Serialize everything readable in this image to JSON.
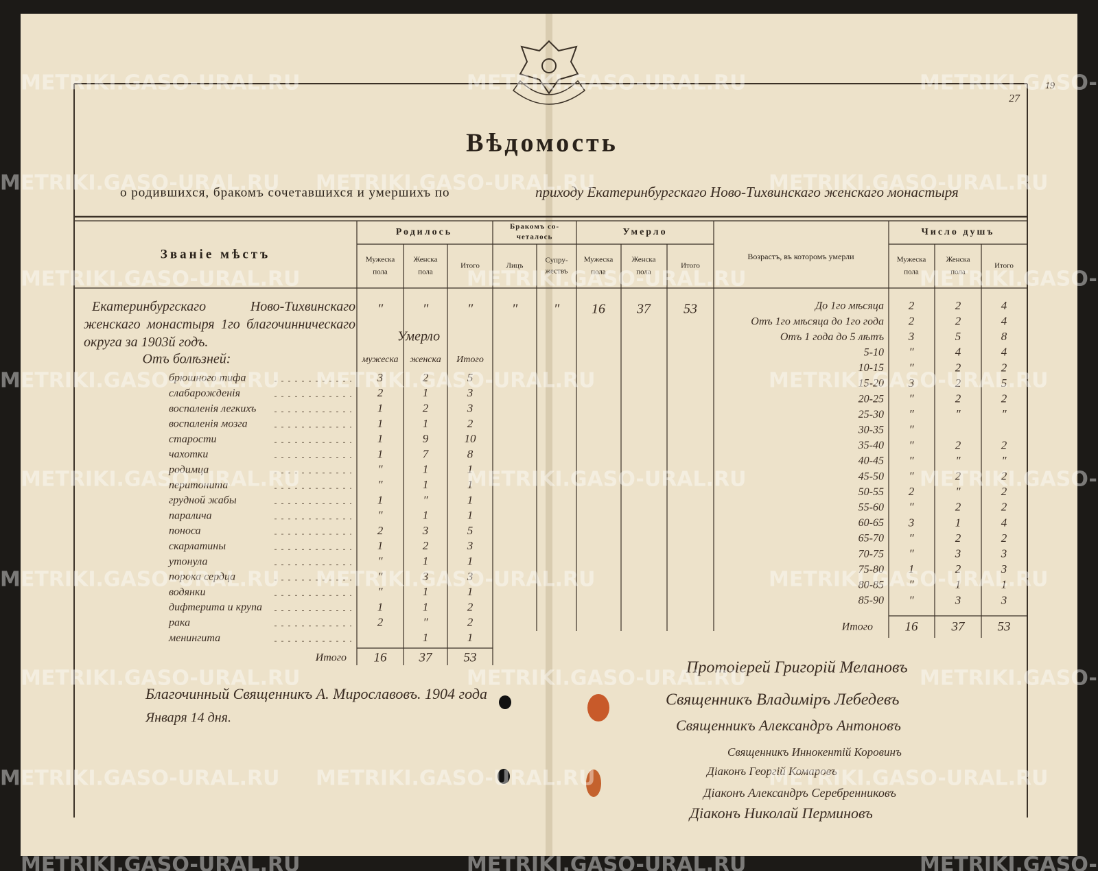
{
  "header": {
    "title": "Вѣдомость",
    "subtitle": "о родившихся, бракомъ сочетавшихся и умершихъ по",
    "subtitle_hand": "приходу Екатеринбургскаго Ново-Тихвинскаго женскаго монастыря",
    "folio": [
      "27",
      "19"
    ]
  },
  "watermark": "METRIKI.GASO-URAL.RU",
  "table": {
    "headers": {
      "place": "Званіе мѣстъ",
      "born": {
        "title": "Родилось",
        "sub": [
          [
            "Мужеска",
            "пола"
          ],
          [
            "Женска",
            "пола"
          ],
          [
            "Итого"
          ]
        ]
      },
      "married": {
        "title": [
          "Бракомъ со-",
          "четалось"
        ],
        "sub": [
          [
            "Лицъ"
          ],
          [
            "Супру-",
            "жествъ"
          ]
        ]
      },
      "died": {
        "title": "Умерло",
        "sub": [
          [
            "Мужеска",
            "пола"
          ],
          [
            "Женска",
            "пола"
          ],
          [
            "Итого"
          ]
        ]
      },
      "age": "Возрастъ, въ которомъ умерли",
      "souls": {
        "title": "Число душъ",
        "sub": [
          [
            "Мужеска",
            "пола"
          ],
          [
            "Женска",
            "пола"
          ],
          [
            "Итого"
          ]
        ]
      }
    },
    "place": "Екатеринбургскаго Ново-Тихвинскаго женскаго монастыря 1го благочинническаго округа за 1903й годъ.",
    "main_row": [
      "″",
      "″",
      "″",
      "″",
      "″",
      16,
      37,
      53
    ],
    "causes_header": {
      "title": "Умерло",
      "sub": [
        "мужеска",
        "женска",
        "Итого"
      ],
      "from": "Отъ болѣзней:"
    },
    "causes": [
      [
        "брюшного тифа",
        3,
        2,
        5
      ],
      [
        "слабарожденія",
        2,
        1,
        3
      ],
      [
        "воспаленія легкихъ",
        1,
        2,
        3
      ],
      [
        "воспаленія мозга",
        1,
        1,
        2
      ],
      [
        "старости",
        1,
        9,
        10
      ],
      [
        "чахотки",
        1,
        7,
        8
      ],
      [
        "родимца",
        "″",
        1,
        1
      ],
      [
        "перитонита",
        "″",
        1,
        1
      ],
      [
        "грудной жабы",
        1,
        "″",
        1
      ],
      [
        "паралича",
        "″",
        1,
        1
      ],
      [
        "поноса",
        2,
        3,
        5
      ],
      [
        "скарлатины",
        1,
        2,
        3
      ],
      [
        "утонула",
        "″",
        1,
        1
      ],
      [
        "порока сердца",
        "″",
        3,
        3
      ],
      [
        "водянки",
        "″",
        1,
        1
      ],
      [
        "дифтерита и крупа",
        1,
        1,
        2
      ],
      [
        "рака",
        2,
        "″",
        2
      ],
      [
        "менингита",
        null,
        1,
        1
      ]
    ],
    "causes_total": [
      "Итого",
      16,
      37,
      53
    ],
    "ages": [
      [
        "До 1го мѣсяца",
        2,
        2,
        4
      ],
      [
        "Отъ 1го мѣсяца до 1го года",
        2,
        2,
        4
      ],
      [
        "Отъ 1 года до 5 лѣтъ",
        3,
        5,
        8
      ],
      [
        "5-10",
        "″",
        4,
        4
      ],
      [
        "10-15",
        "″",
        2,
        2
      ],
      [
        "15-20",
        3,
        2,
        5
      ],
      [
        "20-25",
        "″",
        2,
        2
      ],
      [
        "25-30",
        "″",
        "″",
        "″"
      ],
      [
        "30-35",
        "″",
        null,
        null
      ],
      [
        "35-40",
        "″",
        2,
        2
      ],
      [
        "40-45",
        "″",
        "″",
        "″"
      ],
      [
        "45-50",
        "″",
        2,
        2
      ],
      [
        "50-55",
        2,
        "″",
        2
      ],
      [
        "55-60",
        "″",
        2,
        2
      ],
      [
        "60-65",
        3,
        1,
        4
      ],
      [
        "65-70",
        "″",
        2,
        2
      ],
      [
        "70-75",
        "″",
        3,
        3
      ],
      [
        "75-80",
        1,
        2,
        3
      ],
      [
        "80-85",
        "″",
        1,
        1
      ],
      [
        "85-90",
        "″",
        3,
        3
      ]
    ],
    "ages_total": [
      "Итого",
      16,
      37,
      53
    ]
  },
  "signatures": {
    "left": [
      "Благочинный Священникъ А. Мирославовъ. 1904 года",
      "Января 14 дня."
    ],
    "right": [
      "Протоіерей Григорій Мелановъ",
      "Священникъ Владиміръ Лебедевъ",
      "Священникъ Александръ Антоновъ",
      "Священникъ Иннокентій Коровинъ",
      "Діаконъ Георгій Комаровъ",
      "Діаконъ Александръ Серебренниковъ",
      "Діаконъ Николай Перминовъ"
    ]
  }
}
